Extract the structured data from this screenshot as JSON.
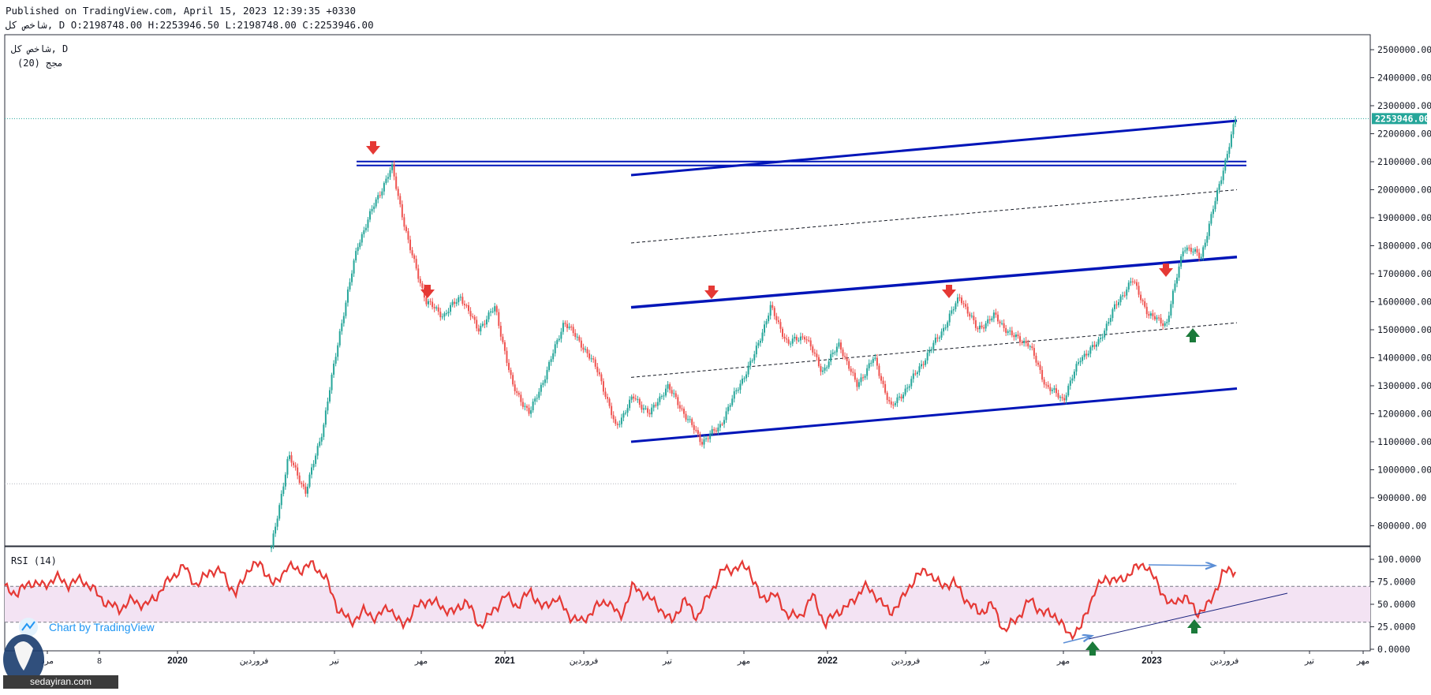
{
  "header": {
    "published": "Published on TradingView.com, April 15, 2023 12:39:35 +0330",
    "ohlc_line": "شاخص کل, D O:2198748.00 H:2253946.50 L:2198748.00 C:2253946.00"
  },
  "colors": {
    "up": "#26a69a",
    "down": "#ef5350",
    "channel": "#0015b8",
    "rsi_line": "#e53935",
    "rsi_band": "#f3e3f3",
    "last_price_bg": "#26a69a",
    "marker_down": "#e53935",
    "marker_up": "#1b7a3a",
    "divergence_arrow": "#5b8ed6"
  },
  "chart_data": [
    {
      "type": "candlestick",
      "title": "شاخص کل, D",
      "legend": [
        "شاخص کل, D",
        "(20) مجج"
      ],
      "ylim": [
        700000,
        2600000
      ],
      "y_ticks": [
        "2500000.00",
        "2400000.00",
        "2300000.00",
        "2200000.00",
        "2100000.00",
        "2000000.00",
        "1900000.00",
        "1800000.00",
        "1700000.00",
        "1600000.00",
        "1500000.00",
        "1400000.00",
        "1300000.00",
        "1200000.00",
        "1100000.00",
        "1000000.00",
        "900000.00",
        "800000.00"
      ],
      "last_price": "2253946.00",
      "x_ticks": [
        "مرد",
        "8",
        "2020",
        "فروردین",
        "تیر",
        "مهر",
        "2021",
        "فروردین",
        "تیر",
        "مهر",
        "2022",
        "فروردین",
        "تیر",
        "مهر",
        "2023",
        "فروردین",
        "تیر",
        "مهر"
      ],
      "series": [
        {
          "values": [
            720000,
            1050000,
            920000,
            1150000,
            1500000,
            1800000,
            1950000,
            2080000,
            1800000,
            1600000,
            1550000,
            1620000,
            1500000,
            1580000,
            1300000,
            1200000,
            1350000,
            1530000,
            1450000,
            1350000,
            1150000,
            1260000,
            1200000,
            1300000,
            1200000,
            1100000,
            1150000,
            1280000,
            1400000,
            1580000,
            1450000,
            1480000,
            1350000,
            1450000,
            1300000,
            1400000,
            1220000,
            1300000,
            1400000,
            1500000,
            1620000,
            1500000,
            1550000,
            1480000,
            1450000,
            1300000,
            1250000,
            1400000,
            1450000,
            1580000,
            1680000,
            1550000,
            1520000,
            1800000,
            1760000,
            2000000,
            2250000
          ]
        }
      ],
      "annotations": {
        "horizontal_resistance": 2095000,
        "upper_channel": [
          [
            1330000,
            2050000
          ],
          [
            2240000,
            0
          ]
        ],
        "middle_channel": [
          1580000,
          1760000
        ],
        "lower_channel": [
          1100000,
          1290000
        ],
        "dashed_upper": [
          1810000,
          2000000
        ],
        "dashed_lower": [
          1330000,
          1525000
        ],
        "support_dotted": 950000
      }
    },
    {
      "type": "line",
      "title": "RSI (14)",
      "ylim": [
        0,
        100
      ],
      "y_ticks": [
        "100.0000",
        "75.0000",
        "50.0000",
        "25.0000",
        "0.0000"
      ],
      "band": [
        30,
        70
      ],
      "series": [
        {
          "values": [
            68,
            62,
            75,
            70,
            80,
            72,
            78,
            65,
            50,
            45,
            55,
            48,
            62,
            80,
            92,
            70,
            88,
            85,
            60,
            90,
            95,
            70,
            92,
            88,
            95,
            80,
            45,
            30,
            42,
            35,
            48,
            25,
            45,
            55,
            48,
            40,
            55,
            25,
            40,
            60,
            48,
            65,
            45,
            58,
            38,
            30,
            45,
            55,
            35,
            70,
            60,
            48,
            30,
            55,
            35,
            62,
            88,
            90,
            92,
            55,
            62,
            40,
            35,
            60,
            28,
            42,
            50,
            70,
            60,
            40,
            55,
            80,
            88,
            70,
            75,
            55,
            40,
            50,
            20,
            35,
            55,
            40,
            38,
            15,
            25,
            65,
            80,
            75,
            88,
            95,
            70,
            48,
            60,
            40,
            50,
            85,
            88
          ]
        }
      ]
    }
  ],
  "watermark": "Chart by TradingView",
  "site_badge": "sedayiran.com"
}
